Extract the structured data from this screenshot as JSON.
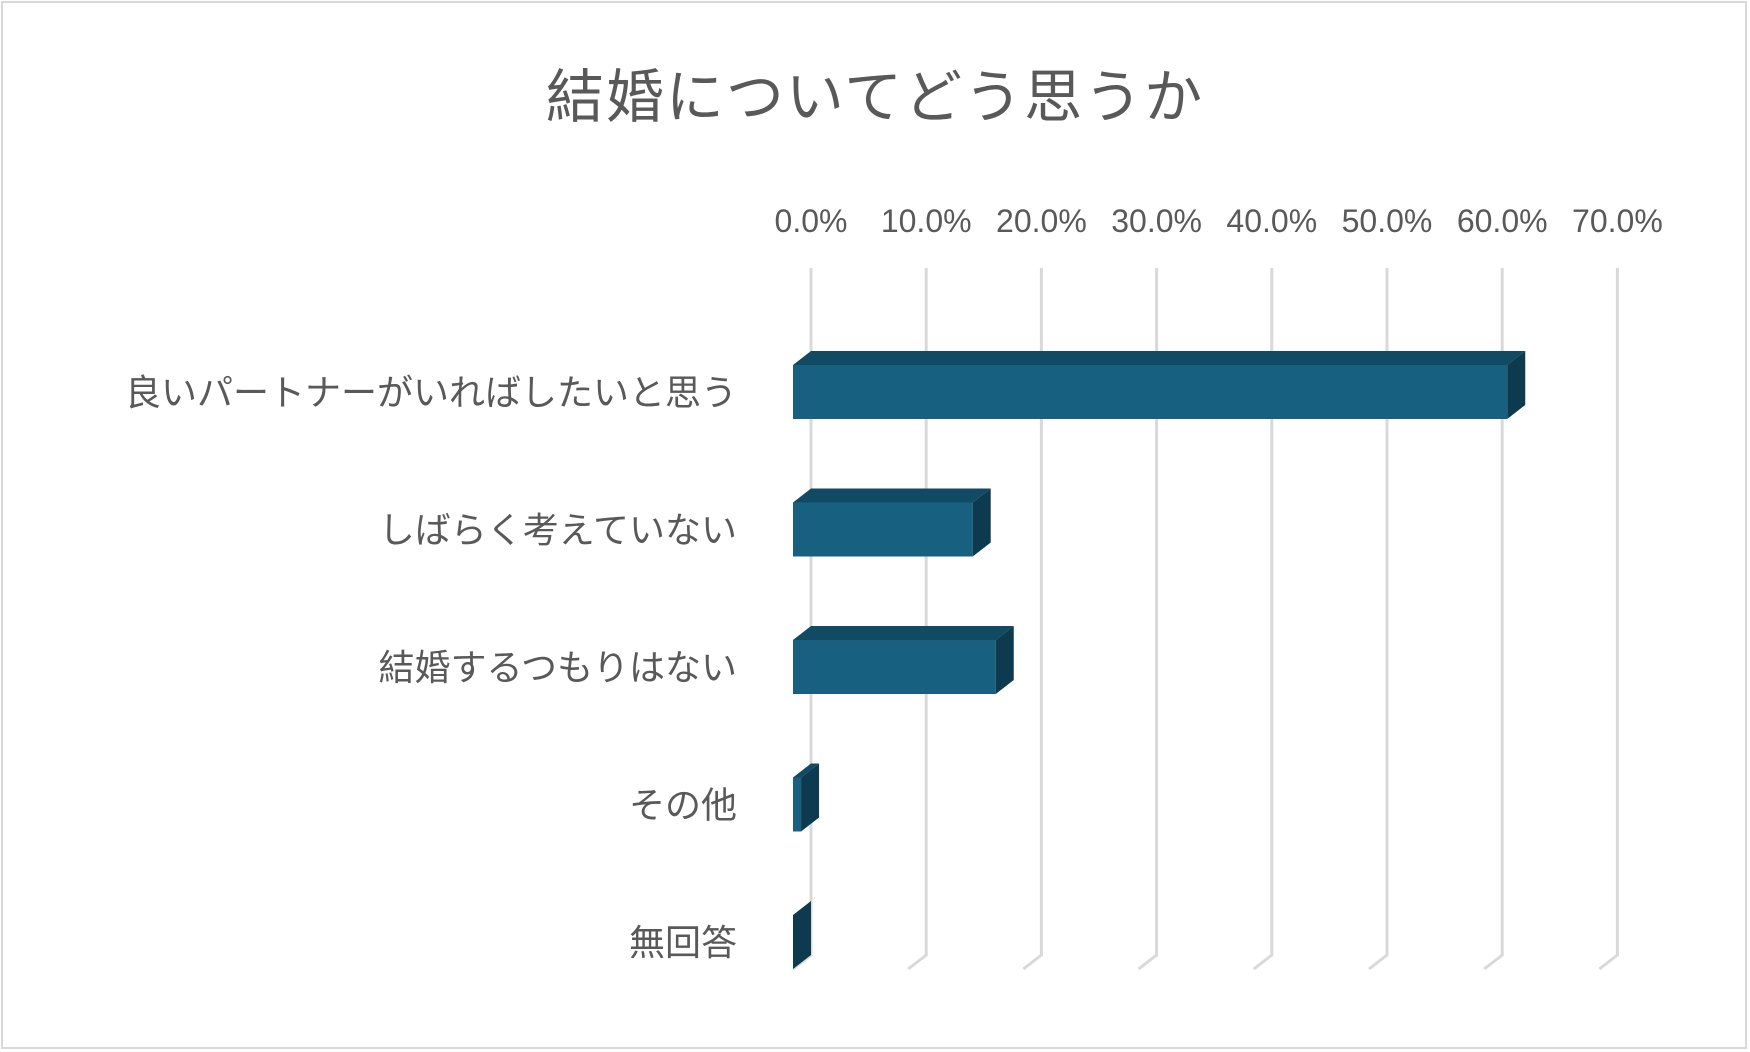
{
  "chart_data": {
    "type": "bar",
    "orientation": "horizontal",
    "style": "3d",
    "title": "結婚についてどう思うか",
    "categories": [
      "良いパートナーがいればしたいと思う",
      "しばらく考えていない",
      "結婚するつもりはない",
      "その他",
      "無回答"
    ],
    "values": [
      62.0,
      15.6,
      17.6,
      0.7,
      0.0
    ],
    "xlim": [
      0,
      70
    ],
    "xticks": [
      "0.0%",
      "10.0%",
      "20.0%",
      "30.0%",
      "40.0%",
      "50.0%",
      "60.0%",
      "70.0%"
    ],
    "tick_position": "top",
    "grid": true,
    "legend": "none",
    "colors": {
      "bar_front": "#17607f",
      "bar_top": "#114a63",
      "bar_side": "#0d3a4e",
      "grid": "#d9d9d9",
      "text": "#595959"
    }
  }
}
